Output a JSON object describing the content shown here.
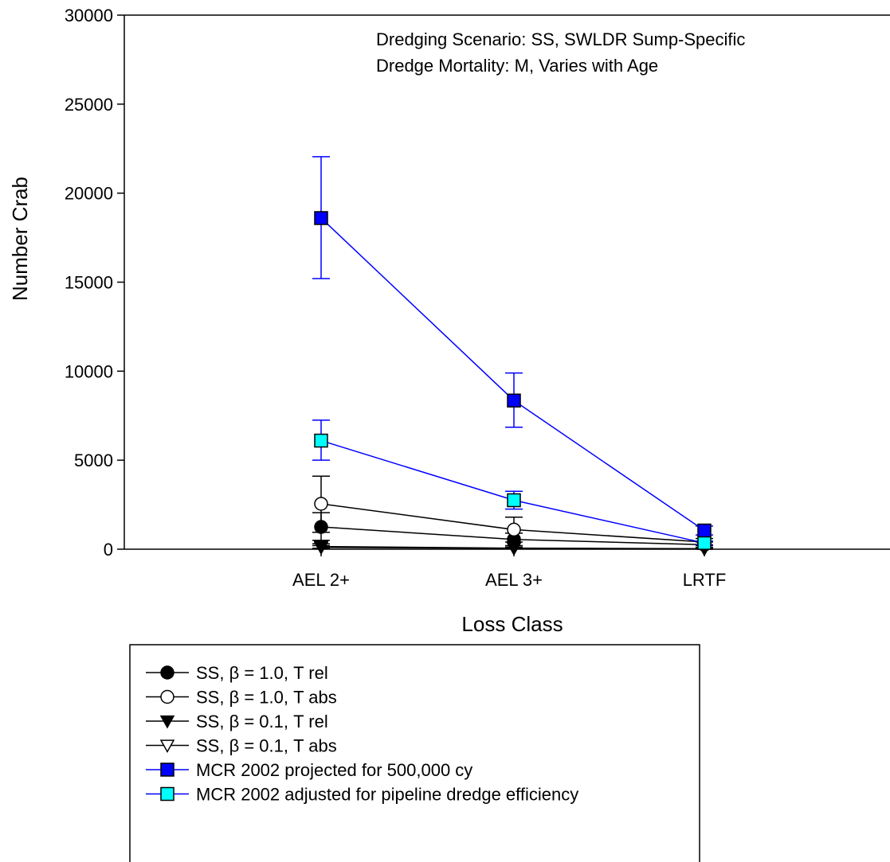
{
  "chart_data": {
    "type": "line",
    "categories": [
      "AEL 2+",
      "AEL 3+",
      "LRTF"
    ],
    "xlabel": "Loss Class",
    "ylabel": "Number Crab",
    "ylim": [
      0,
      30000
    ],
    "yticks": [
      0,
      5000,
      10000,
      15000,
      20000,
      25000,
      30000
    ],
    "annotations": [
      "Dredging Scenario:  SS, SWLDR Sump-Specific",
      "Dredge Mortality:  M, Varies with Age"
    ],
    "grid": false,
    "legend_position": "bottom",
    "series": [
      {
        "name": "SS, β = 1.0, T rel",
        "color": "#000000",
        "marker": "circle",
        "fill": "#000000",
        "values": [
          1250,
          550,
          250
        ],
        "error_upper": [
          2050,
          900,
          400
        ],
        "error_lower": [
          500,
          200,
          100
        ]
      },
      {
        "name": "SS, β = 1.0, T abs",
        "color": "#000000",
        "marker": "circle",
        "fill": "#ffffff",
        "values": [
          2550,
          1100,
          400
        ],
        "error_upper": [
          4100,
          1800,
          600
        ],
        "error_lower": [
          950,
          400,
          200
        ]
      },
      {
        "name": "SS, β  = 0.1, T rel",
        "color": "#000000",
        "marker": "triangle-down",
        "fill": "#000000",
        "values": [
          150,
          60,
          30
        ],
        "error_upper": [
          300,
          120,
          60
        ],
        "error_lower": [
          50,
          20,
          10
        ]
      },
      {
        "name": "SS, β  = 0.1, T abs",
        "color": "#000000",
        "marker": "triangle-down",
        "fill": "#ffffff",
        "values": [
          100,
          50,
          20
        ],
        "error_upper": [
          200,
          100,
          40
        ],
        "error_lower": [
          30,
          15,
          5
        ]
      },
      {
        "name": "MCR 2002 projected for 500,000 cy",
        "color": "#0000ff",
        "marker": "square",
        "fill": "#0000ff",
        "values": [
          18600,
          8350,
          1050
        ],
        "error_upper": [
          22050,
          9900,
          1300
        ],
        "error_lower": [
          15200,
          6850,
          800
        ]
      },
      {
        "name": "MCR 2002 adjusted for pipeline dredge  efficiency",
        "color": "#0000ff",
        "marker": "square",
        "fill": "#00ffff",
        "values": [
          6100,
          2750,
          350
        ],
        "error_upper": [
          7250,
          3250,
          450
        ],
        "error_lower": [
          5000,
          2250,
          250
        ]
      }
    ]
  }
}
